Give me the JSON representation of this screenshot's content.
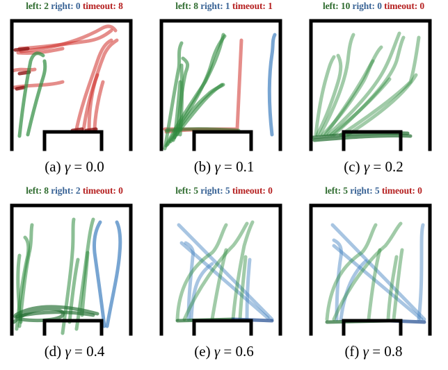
{
  "panels": [
    {
      "id": "a",
      "counts": {
        "left_label": "left:",
        "left": "2",
        "right_label": "right:",
        "right": "0",
        "timeout_label": "timeout:",
        "timeout": "8"
      },
      "caption": {
        "label": "(a)",
        "symbol": "γ",
        "eq": "=",
        "value": "0.0"
      }
    },
    {
      "id": "b",
      "counts": {
        "left_label": "left:",
        "left": "8",
        "right_label": "right:",
        "right": "1",
        "timeout_label": "timeout:",
        "timeout": "1"
      },
      "caption": {
        "label": "(b)",
        "symbol": "γ",
        "eq": "=",
        "value": "0.1"
      }
    },
    {
      "id": "c",
      "counts": {
        "left_label": "left:",
        "left": "10",
        "right_label": "right:",
        "right": "0",
        "timeout_label": "timeout:",
        "timeout": "0"
      },
      "caption": {
        "label": "(c)",
        "symbol": "γ",
        "eq": "=",
        "value": "0.2"
      }
    },
    {
      "id": "d",
      "counts": {
        "left_label": "left:",
        "left": "8",
        "right_label": "right:",
        "right": "2",
        "timeout_label": "timeout:",
        "timeout": "0"
      },
      "caption": {
        "label": "(d)",
        "symbol": "γ",
        "eq": "=",
        "value": "0.4"
      }
    },
    {
      "id": "e",
      "counts": {
        "left_label": "left:",
        "left": "5",
        "right_label": "right:",
        "right": "5",
        "timeout_label": "timeout:",
        "timeout": "0"
      },
      "caption": {
        "label": "(e)",
        "symbol": "γ",
        "eq": "=",
        "value": "0.6"
      }
    },
    {
      "id": "f",
      "counts": {
        "left_label": "left:",
        "left": "5",
        "right_label": "right:",
        "right": "5",
        "timeout_label": "timeout:",
        "timeout": "0"
      },
      "caption": {
        "label": "(f)",
        "symbol": "γ",
        "eq": "=",
        "value": "0.8"
      }
    }
  ],
  "colors": {
    "left": "#2e8b3e",
    "right": "#3f7fbf",
    "timeout": "#d0302a",
    "wall": "#000000"
  }
}
